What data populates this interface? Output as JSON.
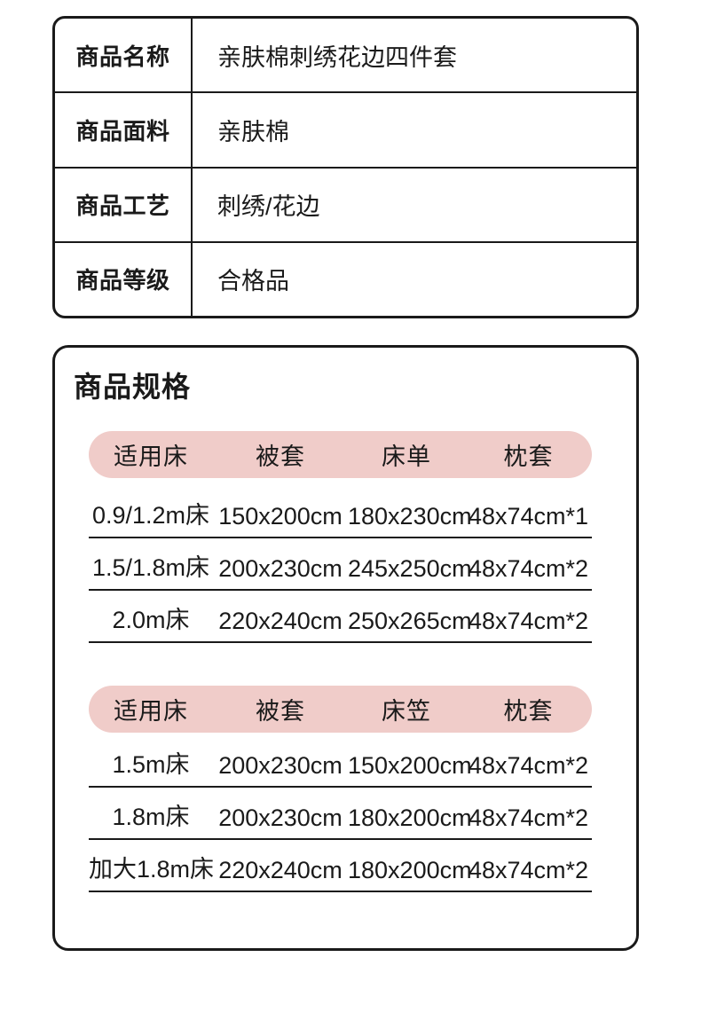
{
  "colors": {
    "accent_pink": "#f0ccc9",
    "line_black": "#1a1a1a",
    "background": "#ffffff"
  },
  "info_table": {
    "rows": [
      {
        "label": "商品名称",
        "value": "亲肤棉刺绣花边四件套"
      },
      {
        "label": "商品面料",
        "value": "亲肤棉"
      },
      {
        "label": "商品工艺",
        "value": "刺绣/花边"
      },
      {
        "label": "商品等级",
        "value": "合格品"
      }
    ]
  },
  "specs": {
    "title": "商品规格",
    "tables": [
      {
        "headers": [
          "适用床",
          "被套",
          "床单",
          "枕套"
        ],
        "rows": [
          [
            "0.9/1.2m床",
            "150x200cm",
            "180x230cm",
            "48x74cm*1"
          ],
          [
            "1.5/1.8m床",
            "200x230cm",
            "245x250cm",
            "48x74cm*2"
          ],
          [
            "2.0m床",
            "220x240cm",
            "250x265cm",
            "48x74cm*2"
          ]
        ]
      },
      {
        "headers": [
          "适用床",
          "被套",
          "床笠",
          "枕套"
        ],
        "rows": [
          [
            "1.5m床",
            "200x230cm",
            "150x200cm",
            "48x74cm*2"
          ],
          [
            "1.8m床",
            "200x230cm",
            "180x200cm",
            "48x74cm*2"
          ],
          [
            "加大1.8m床",
            "220x240cm",
            "180x200cm",
            "48x74cm*2"
          ]
        ]
      }
    ]
  }
}
